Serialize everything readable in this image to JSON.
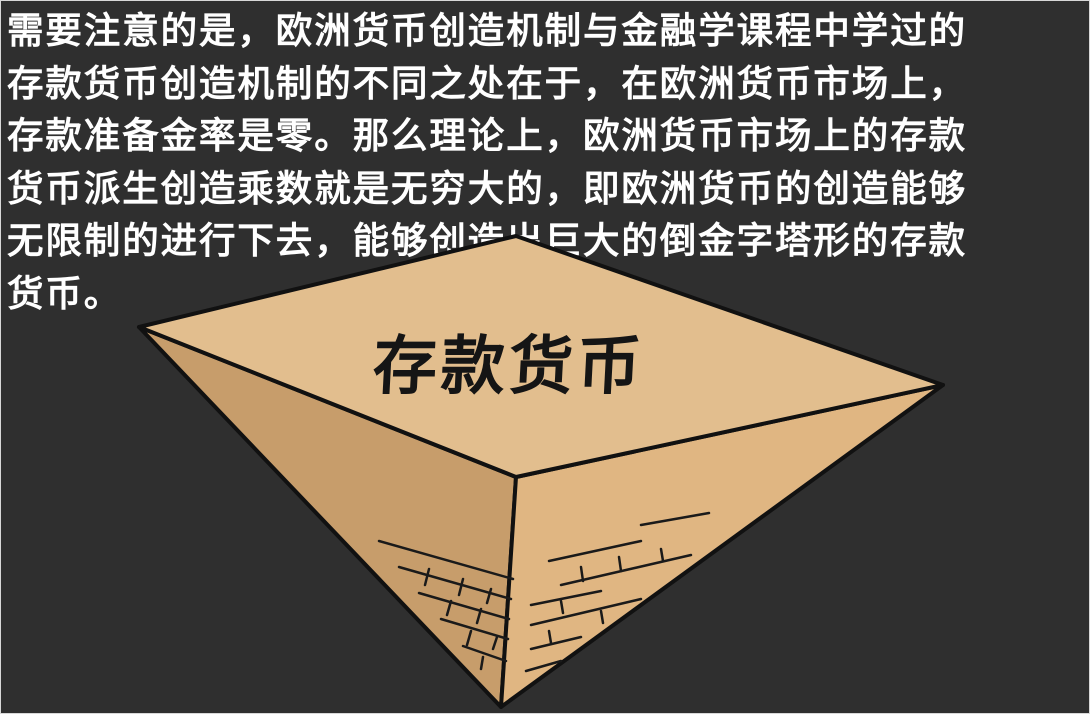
{
  "slide": {
    "caption": "需要注意的是，欧洲货币创造机制与金融学课程中学过的\n存款货币创造机制的不同之处在于，在欧洲货币市场上，\n存款准备金率是零。那么理论上，欧洲货币市场上的存款\n货币派生创造乘数就是无穷大的，即欧洲货币的创造能够\n无限制的进行下去，能够创造出巨大的倒金字塔形的存款\n货币。",
    "illustration": {
      "icon": "inverted-pyramid-icon",
      "label": "存款货币",
      "colors": {
        "background": "#2f2f2f",
        "top_face": "#e2be8e",
        "left_face": "#c79d6b",
        "right_face": "#e0b682",
        "outline": "#111111"
      }
    }
  }
}
